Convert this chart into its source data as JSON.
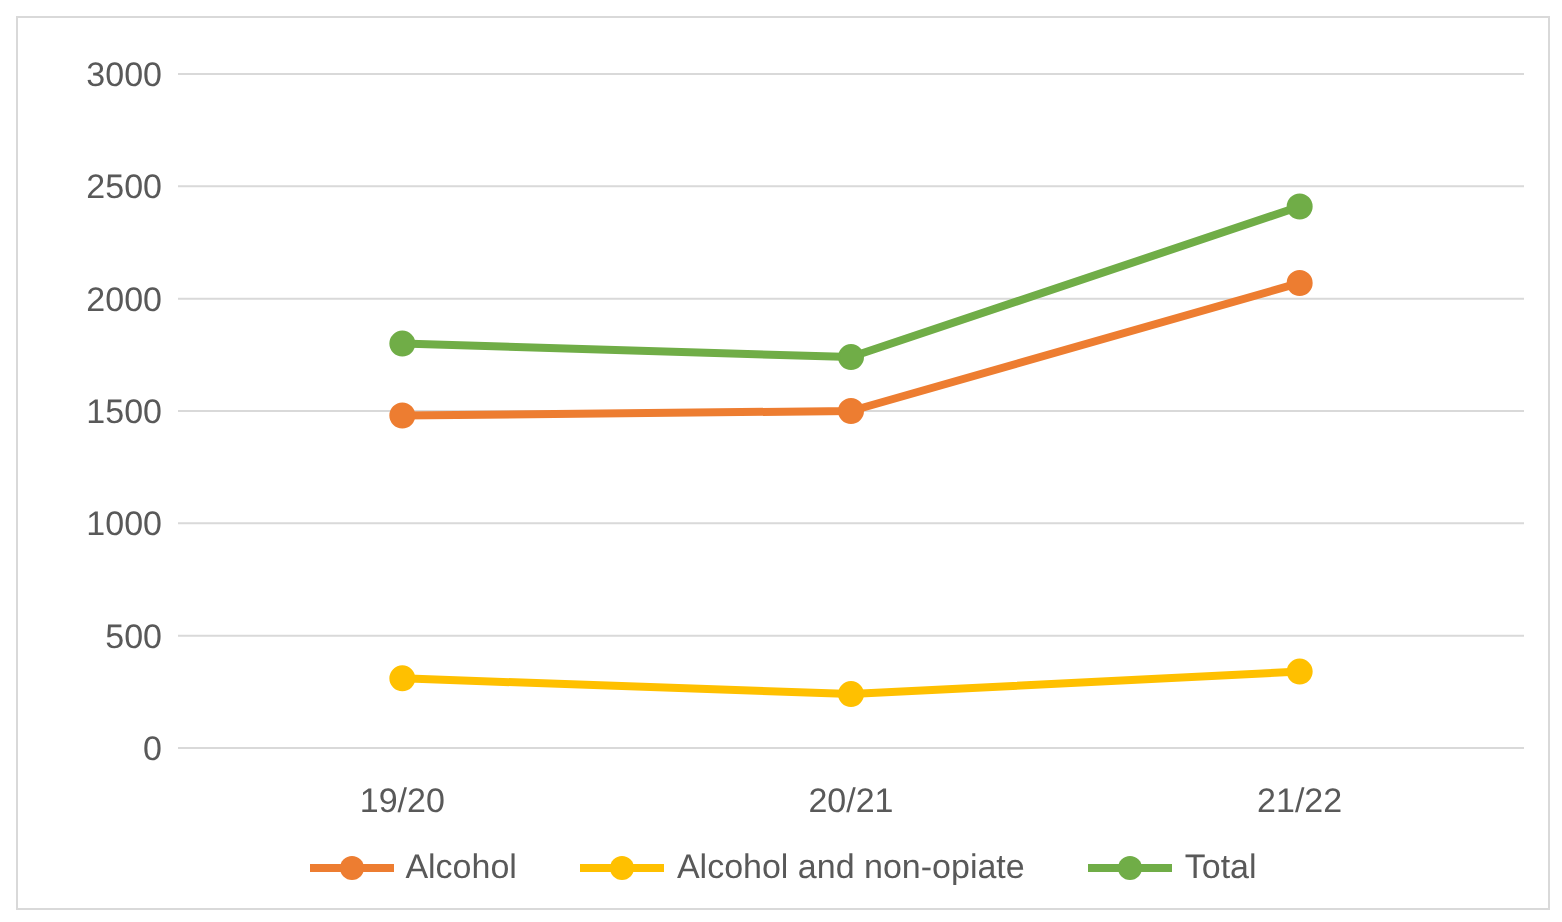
{
  "chart_data": {
    "type": "line",
    "categories": [
      "19/20",
      "20/21",
      "21/22"
    ],
    "series": [
      {
        "name": "Alcohol",
        "color": "#ed7d31",
        "values": [
          1480,
          1500,
          2070
        ]
      },
      {
        "name": "Alcohol and non-opiate",
        "color": "#ffc000",
        "values": [
          310,
          240,
          340
        ]
      },
      {
        "name": "Total",
        "color": "#70ad47",
        "values": [
          1800,
          1740,
          2410
        ]
      }
    ],
    "ylim": [
      0,
      3000
    ],
    "yticks": [
      0,
      500,
      1000,
      1500,
      2000,
      2500,
      3000
    ],
    "grid": "y",
    "legend": "bottom",
    "marker": "circle",
    "line_style": "solid"
  }
}
